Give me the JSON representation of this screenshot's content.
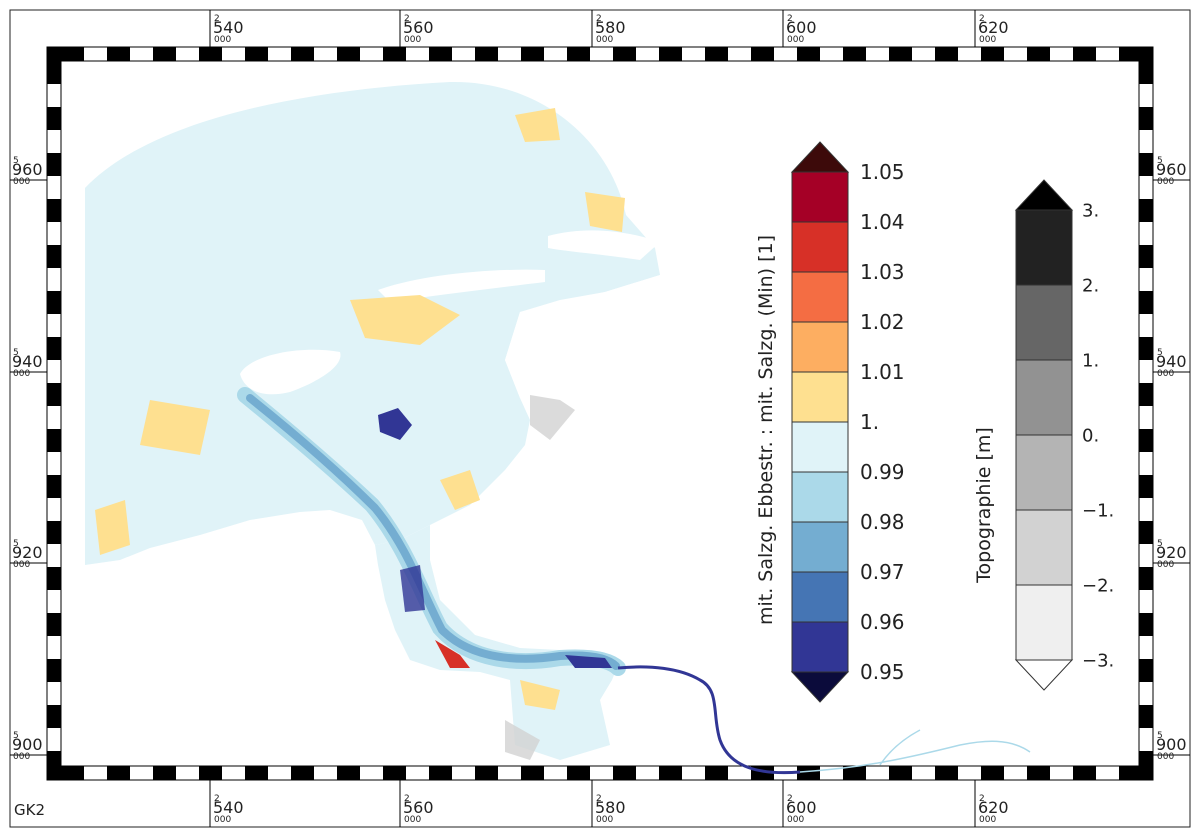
{
  "map": {
    "crs_label": "GK2",
    "easting_ticks": [
      {
        "major": "2",
        "main": "540",
        "minor": "000"
      },
      {
        "major": "2",
        "main": "560",
        "minor": "000"
      },
      {
        "major": "2",
        "main": "580",
        "minor": "000"
      },
      {
        "major": "2",
        "main": "600",
        "minor": "000"
      },
      {
        "major": "2",
        "main": "620",
        "minor": "000"
      }
    ],
    "northing_ticks": [
      {
        "major": "5",
        "main": "960",
        "minor": "000"
      },
      {
        "major": "5",
        "main": "940",
        "minor": "000"
      },
      {
        "major": "5",
        "main": "920",
        "minor": "000"
      },
      {
        "major": "5",
        "main": "900",
        "minor": "000"
      }
    ]
  },
  "ratio_legend": {
    "title": "mit. Salzg. Ebbestr. : mit. Salzg. (Min) [1]",
    "labels": [
      "1.05",
      "1.04",
      "1.03",
      "1.02",
      "1.01",
      "1.",
      "0.99",
      "0.98",
      "0.97",
      "0.96",
      "0.95"
    ],
    "colors": [
      "#a50026",
      "#d73027",
      "#f46d43",
      "#fdae61",
      "#fee090",
      "#e0f3f8",
      "#abd9e9",
      "#74add1",
      "#4575b4",
      "#313695"
    ],
    "over_color": "#3d0a0a",
    "under_color": "#0b0b3b"
  },
  "topo_legend": {
    "title": "Topographie [m]",
    "labels": [
      "3.",
      "2.",
      "1.",
      "0.",
      "−1.",
      "−2.",
      "−3."
    ],
    "colors": [
      "#222222",
      "#666666",
      "#929292",
      "#b4b4b4",
      "#d2d2d2",
      "#efefef"
    ],
    "over_color": "#000000",
    "under_color": "#ffffff"
  },
  "colors": {
    "sea": "#e0f3f8",
    "flat": "#fee090",
    "channel_light": "#abd9e9",
    "channel_mid": "#74add1",
    "channel_dark": "#313695",
    "land": "#d2d2d2"
  }
}
